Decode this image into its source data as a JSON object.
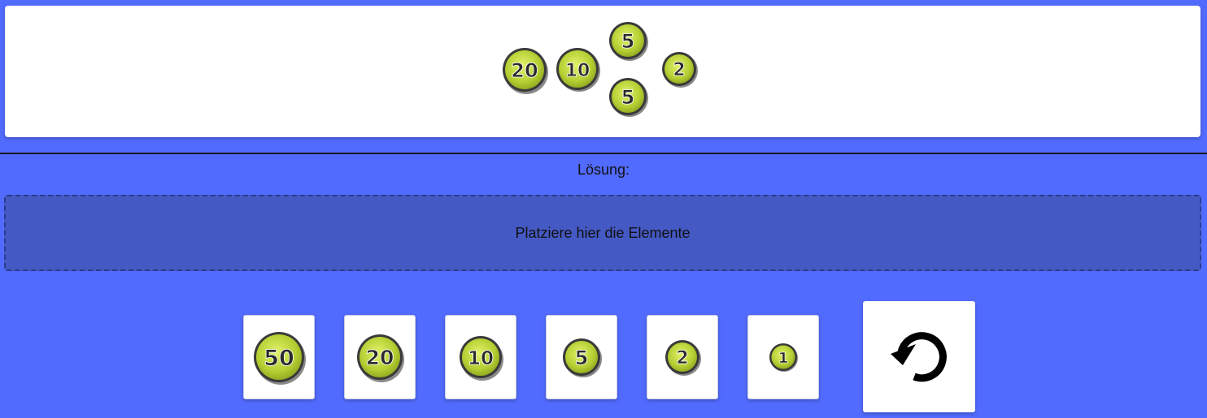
{
  "task": {
    "coins": [
      {
        "value": "20"
      },
      {
        "value": "10"
      },
      {
        "value": "5"
      },
      {
        "value": "5"
      },
      {
        "value": "2"
      }
    ]
  },
  "solution": {
    "label": "Lösung:",
    "placeholder": "Platziere hier die Elemente"
  },
  "palette": {
    "coins": [
      {
        "value": "50"
      },
      {
        "value": "20"
      },
      {
        "value": "10"
      },
      {
        "value": "5"
      },
      {
        "value": "2"
      },
      {
        "value": "1"
      }
    ]
  },
  "reset": {
    "icon": "undo-icon"
  },
  "colors": {
    "background": "#526bff",
    "coin_fill": "#bcd63a",
    "coin_outline": "#3a3a3a",
    "drop_zone": "#4559c4"
  }
}
